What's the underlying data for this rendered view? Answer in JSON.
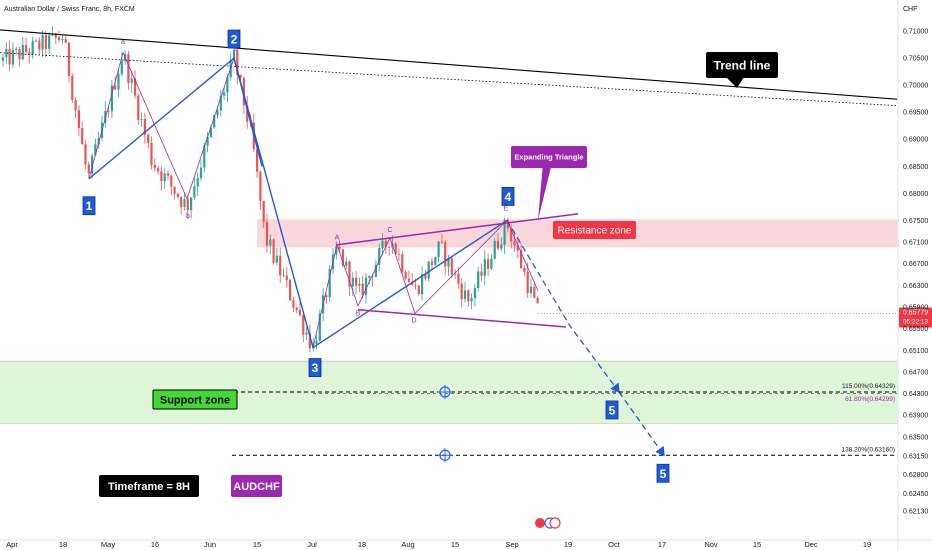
{
  "chart_data": {
    "type": "candlestick",
    "title": "Australian Dollar / Swiss Franc, 8h, FXCM",
    "currency": "CHF",
    "ylim": [
      0.621,
      0.712
    ],
    "y_ticks": [
      "0.71000",
      "0.70500",
      "0.70000",
      "0.69500",
      "0.69000",
      "0.68500",
      "0.68000",
      "0.67500",
      "0.67100",
      "0.66700",
      "0.66300",
      "0.65900",
      "0.65500",
      "0.65100",
      "0.64700",
      "0.64300",
      "0.63900",
      "0.63500",
      "0.63150",
      "0.62800",
      "0.62450",
      "0.62130"
    ],
    "x_ticks": [
      "Apr",
      "18",
      "May",
      "16",
      "Jun",
      "15",
      "Jul",
      "18",
      "Aug",
      "15",
      "Sep",
      "19",
      "Oct",
      "17",
      "Nov",
      "15",
      "Dec",
      "19"
    ],
    "last_price": "0.65779",
    "countdown": "05:22:13",
    "price_path": [
      {
        "x": "Apr",
        "y": 0.7045
      },
      {
        "x": "18",
        "y": 0.709
      },
      {
        "x": "May",
        "y": 0.6825
      },
      {
        "x": "May",
        "y": 0.706
      },
      {
        "x": "16",
        "y": 0.686
      },
      {
        "x": "16",
        "y": 0.6775
      },
      {
        "x": "Jun",
        "y": 0.705
      },
      {
        "x": "15",
        "y": 0.69
      },
      {
        "x": "15",
        "y": 0.672
      },
      {
        "x": "Jul",
        "y": 0.6515
      },
      {
        "x": "Jul",
        "y": 0.67
      },
      {
        "x": "18",
        "y": 0.661
      },
      {
        "x": "18",
        "y": 0.672
      },
      {
        "x": "Aug",
        "y": 0.662
      },
      {
        "x": "Aug",
        "y": 0.67
      },
      {
        "x": "15",
        "y": 0.66
      },
      {
        "x": "Sep",
        "y": 0.6745
      },
      {
        "x": "Sep",
        "y": 0.6578
      }
    ],
    "zones": [
      {
        "label": "Resistance zone",
        "from": 0.67,
        "to": 0.6752,
        "color": "#f8c9cd"
      },
      {
        "label": "Support zone",
        "from": 0.6375,
        "to": 0.649,
        "color": "#d8f5d0"
      }
    ],
    "fib_levels": [
      {
        "label": "115.00%(0.64329)",
        "value": 0.64329
      },
      {
        "label": "61.80%(0.64299)",
        "value": 0.64299
      },
      {
        "label": "138.20%(0.63160)",
        "value": 0.6316
      }
    ],
    "wave_labels": [
      "1",
      "2",
      "3",
      "4",
      "5",
      "5"
    ],
    "sub_wave_labels": [
      "a",
      "b",
      "c",
      "A",
      "B",
      "C",
      "D",
      "E"
    ],
    "annotations": {
      "trend_line": "Trend line",
      "expanding_triangle": "Expanding Triangle",
      "resistance": "Resistance zone",
      "support": "Support zone",
      "timeframe": "Timeframe = 8H",
      "symbol": "AUDCHF"
    },
    "colors": {
      "up": "#26a69a",
      "down": "#ef5350",
      "wave_blue": "#1f5bd8",
      "triangle_purple": "#9c27b0",
      "trend_black": "#000000",
      "price_badge": "#f23645",
      "symbol_badge": "#9c27b0"
    }
  }
}
